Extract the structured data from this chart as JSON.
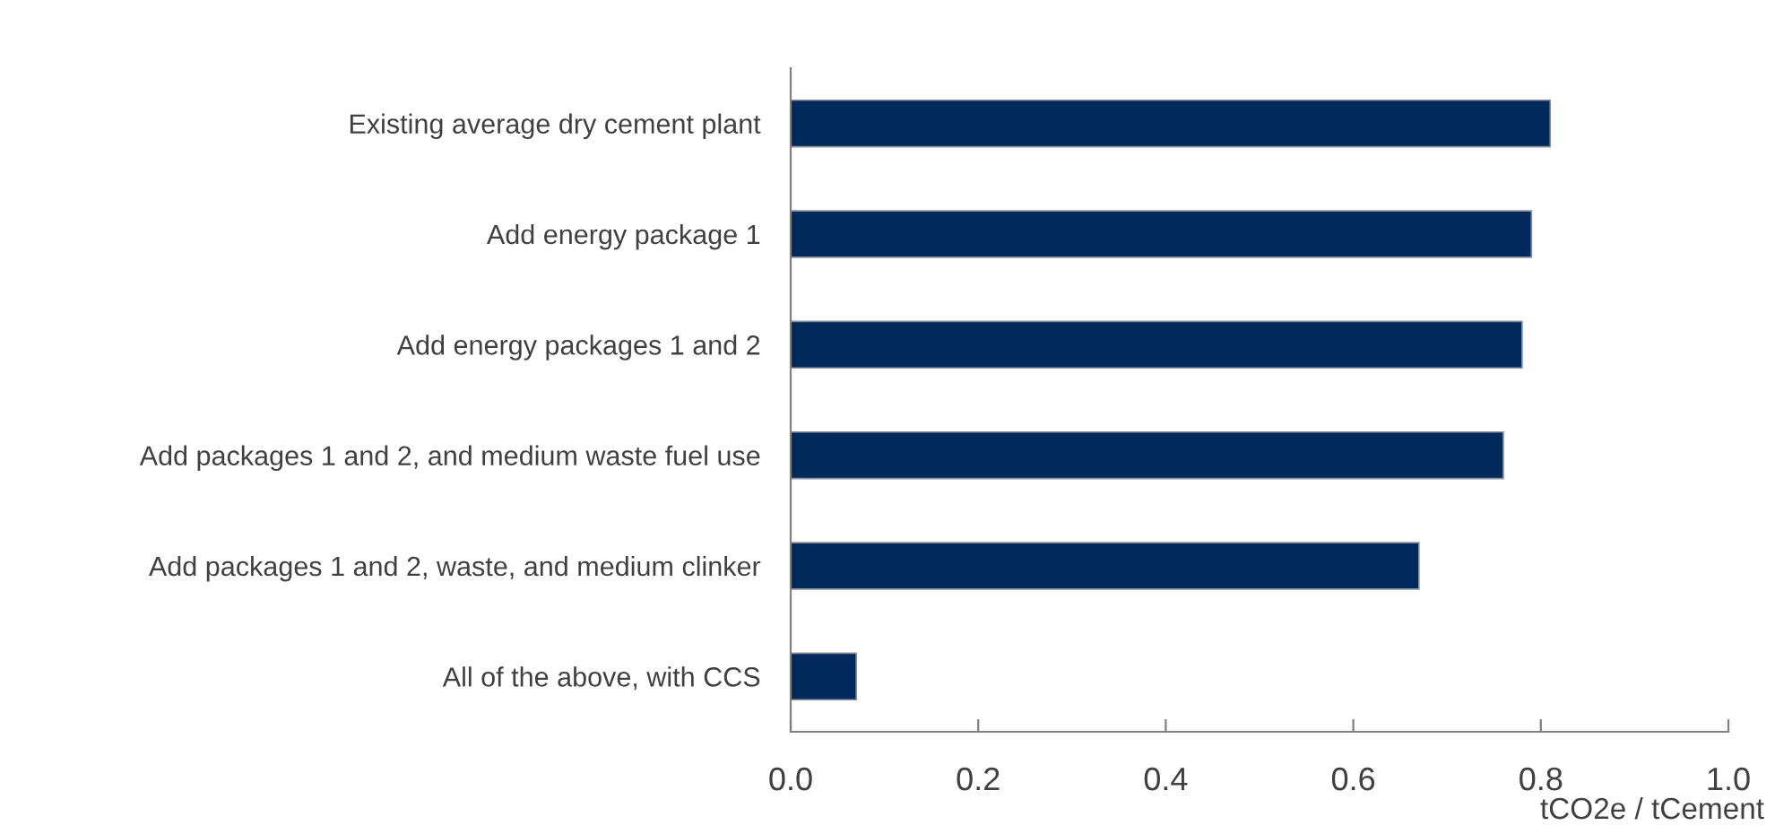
{
  "chart_data": {
    "type": "bar",
    "orientation": "horizontal",
    "xlabel": "tCO2e / tCement",
    "categories": [
      "Existing average dry cement plant",
      "Add energy package 1",
      "Add energy packages 1 and 2",
      "Add packages 1 and 2, and medium waste fuel use",
      "Add packages 1 and 2, waste, and medium clinker",
      "All of the above, with CCS"
    ],
    "values": [
      0.81,
      0.79,
      0.78,
      0.76,
      0.67,
      0.07
    ],
    "color": "#002a5c",
    "xlim": [
      0.0,
      1.0
    ],
    "xticks": [
      {
        "value": 0.0,
        "label": "0.0"
      },
      {
        "value": 0.2,
        "label": "0.2"
      },
      {
        "value": 0.4,
        "label": "0.4"
      },
      {
        "value": 0.6,
        "label": "0.6"
      },
      {
        "value": 0.8,
        "label": "0.8"
      },
      {
        "value": 1.0,
        "label": "1.0"
      }
    ],
    "grid": false
  }
}
